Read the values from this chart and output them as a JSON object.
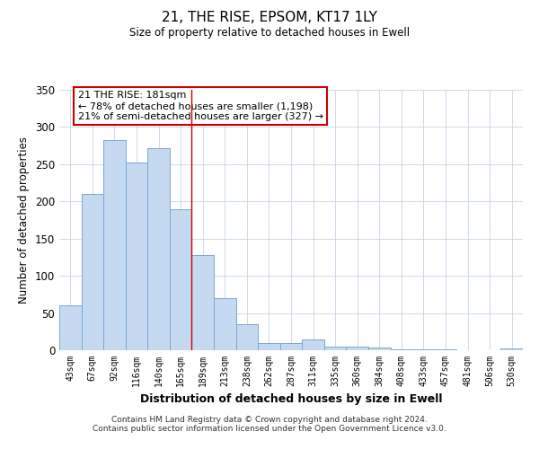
{
  "title": "21, THE RISE, EPSOM, KT17 1LY",
  "subtitle": "Size of property relative to detached houses in Ewell",
  "xlabel": "Distribution of detached houses by size in Ewell",
  "ylabel": "Number of detached properties",
  "categories": [
    "43sqm",
    "67sqm",
    "92sqm",
    "116sqm",
    "140sqm",
    "165sqm",
    "189sqm",
    "213sqm",
    "238sqm",
    "262sqm",
    "287sqm",
    "311sqm",
    "335sqm",
    "360sqm",
    "384sqm",
    "408sqm",
    "433sqm",
    "457sqm",
    "481sqm",
    "506sqm",
    "530sqm"
  ],
  "values": [
    60,
    210,
    283,
    252,
    272,
    189,
    128,
    70,
    35,
    10,
    10,
    14,
    5,
    5,
    4,
    1,
    1,
    1,
    0,
    0,
    2
  ],
  "bar_color": "#c5d9f0",
  "bar_edge_color": "#7ba7d4",
  "ylim": [
    0,
    350
  ],
  "yticks": [
    0,
    50,
    100,
    150,
    200,
    250,
    300,
    350
  ],
  "marker_line_color": "#cc0000",
  "annotation_title": "21 THE RISE: 181sqm",
  "annotation_line1": "← 78% of detached houses are smaller (1,198)",
  "annotation_line2": "21% of semi-detached houses are larger (327) →",
  "annotation_box_edge": "#cc0000",
  "footer_line1": "Contains HM Land Registry data © Crown copyright and database right 2024.",
  "footer_line2": "Contains public sector information licensed under the Open Government Licence v3.0.",
  "background_color": "#ffffff",
  "grid_color": "#c8d4e8"
}
